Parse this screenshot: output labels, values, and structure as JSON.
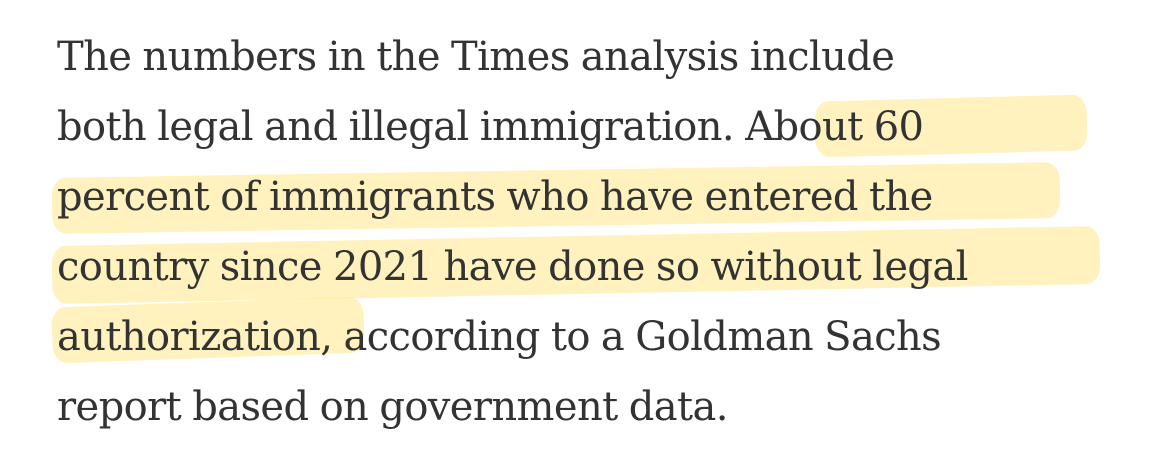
{
  "paragraph": {
    "lines": [
      "The numbers in the Times analysis include",
      "both legal and illegal immigration.",
      "About 60",
      "percent of immigrants who have entered the",
      "country since 2021 have done so without legal",
      "authorization",
      ", according to a Goldman Sachs",
      "report based on government data."
    ]
  },
  "highlight": {
    "color": "#ffe58a"
  }
}
